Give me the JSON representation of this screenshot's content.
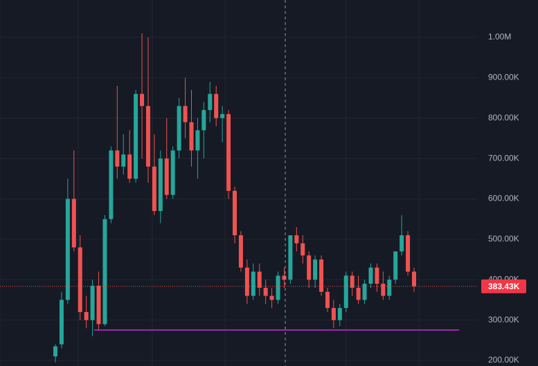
{
  "chart_data": {
    "type": "candlestick",
    "up_color": "#26a69a",
    "down_color": "#ef5350",
    "open": [
      210000,
      240000,
      350000,
      600000,
      480000,
      320000,
      300000,
      385000,
      290000,
      550000,
      720000,
      680000,
      710000,
      650000,
      860000,
      830000,
      680000,
      570000,
      700000,
      610000,
      720000,
      830000,
      790000,
      720000,
      770000,
      820000,
      860000,
      800000,
      810000,
      620000,
      510000,
      430000,
      360000,
      420000,
      380000,
      360000,
      350000,
      410000,
      400000,
      510000,
      490000,
      460000,
      400000,
      450000,
      370000,
      330000,
      300000,
      330000,
      410000,
      380000,
      350000,
      390000,
      430000,
      390000,
      360000,
      400000,
      470000,
      510000,
      420000
    ],
    "high": [
      240000,
      370000,
      650000,
      720000,
      510000,
      360000,
      400000,
      420000,
      560000,
      730000,
      880000,
      760000,
      770000,
      870000,
      1010000,
      1000000,
      760000,
      720000,
      800000,
      730000,
      850000,
      900000,
      870000,
      800000,
      840000,
      890000,
      880000,
      830000,
      820000,
      630000,
      520000,
      450000,
      440000,
      440000,
      400000,
      380000,
      420000,
      430000,
      510000,
      530000,
      510000,
      470000,
      460000,
      460000,
      380000,
      350000,
      340000,
      420000,
      420000,
      410000,
      400000,
      440000,
      440000,
      420000,
      410000,
      470000,
      560000,
      520000,
      430000
    ],
    "low": [
      195000,
      230000,
      340000,
      470000,
      300000,
      280000,
      260000,
      275000,
      285000,
      540000,
      650000,
      660000,
      640000,
      640000,
      700000,
      640000,
      560000,
      540000,
      600000,
      600000,
      700000,
      750000,
      680000,
      650000,
      700000,
      790000,
      780000,
      740000,
      600000,
      490000,
      420000,
      340000,
      350000,
      360000,
      340000,
      330000,
      340000,
      380000,
      390000,
      470000,
      440000,
      380000,
      380000,
      360000,
      320000,
      280000,
      285000,
      320000,
      360000,
      340000,
      340000,
      380000,
      370000,
      350000,
      350000,
      390000,
      460000,
      410000,
      370000
    ],
    "close": [
      235000,
      350000,
      600000,
      480000,
      320000,
      300000,
      385000,
      290000,
      550000,
      720000,
      680000,
      710000,
      650000,
      860000,
      830000,
      680000,
      570000,
      700000,
      610000,
      720000,
      830000,
      790000,
      720000,
      770000,
      820000,
      860000,
      800000,
      810000,
      620000,
      510000,
      430000,
      360000,
      420000,
      380000,
      360000,
      350000,
      410000,
      400000,
      510000,
      490000,
      460000,
      400000,
      450000,
      370000,
      330000,
      300000,
      330000,
      410000,
      380000,
      350000,
      390000,
      430000,
      390000,
      360000,
      400000,
      470000,
      510000,
      420000,
      383430
    ],
    "ylim": [
      186300,
      1092500
    ],
    "yticks": [
      {
        "value": 200000,
        "label": "200.00K"
      },
      {
        "value": 300000,
        "label": "300.00K"
      },
      {
        "value": 400000,
        "label": "400.00K"
      },
      {
        "value": 500000,
        "label": "500.00K"
      },
      {
        "value": 600000,
        "label": "600.00K"
      },
      {
        "value": 700000,
        "label": "700.00K"
      },
      {
        "value": 800000,
        "label": "800.00K"
      },
      {
        "value": 900000,
        "label": "900.00K"
      },
      {
        "value": 1000000,
        "label": "1.00M"
      }
    ],
    "grid": true,
    "last_price": {
      "value": 383430,
      "label": "383.43K"
    },
    "support_line": {
      "value": 275400,
      "color": "#9c27b0"
    }
  }
}
